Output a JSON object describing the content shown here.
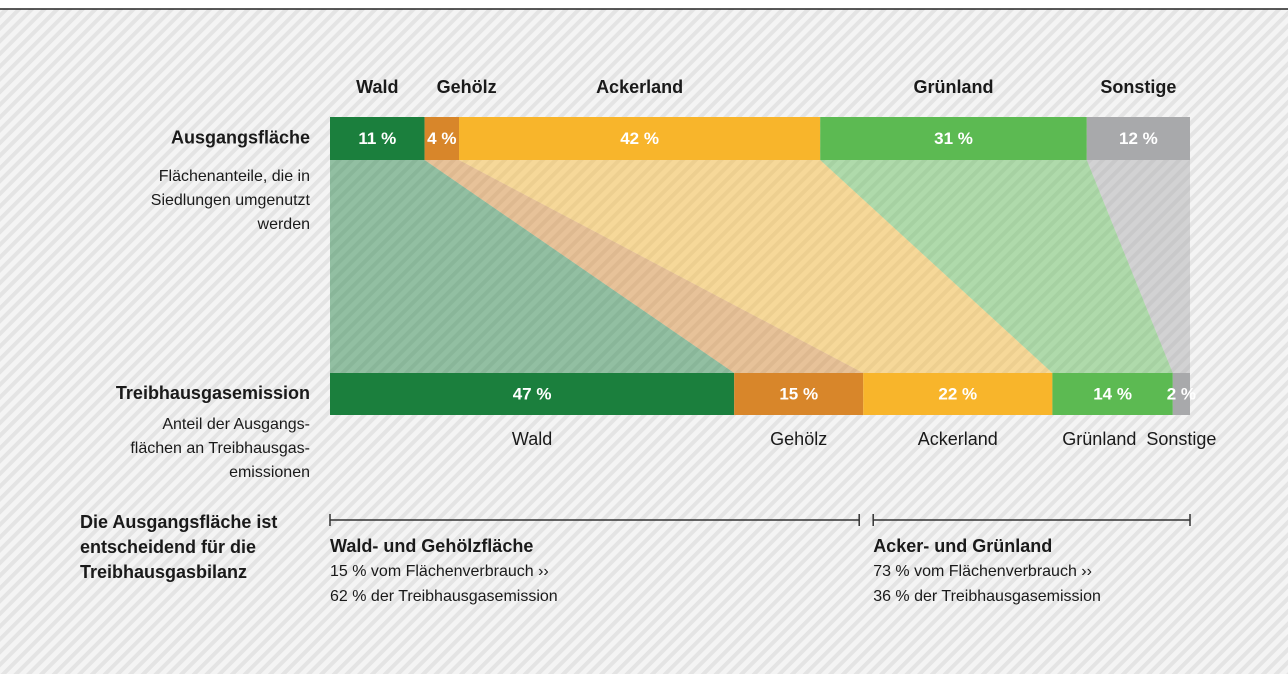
{
  "chart_data": {
    "type": "stacked_bar_flow",
    "categories": [
      "Wald",
      "Gehölz",
      "Ackerland",
      "Grünland",
      "Sonstige"
    ],
    "colors": [
      "#1b7f3d",
      "#d8862a",
      "#f8b52b",
      "#5cba52",
      "#a8a9ab"
    ],
    "xlim": [
      0,
      100
    ],
    "rows": [
      {
        "name": "Ausgangsfläche",
        "description": [
          "Flächenanteile, die in",
          "Siedlungen umgenutzt",
          "werden"
        ],
        "values": [
          11,
          4,
          42,
          31,
          12
        ],
        "value_labels": [
          "11 %",
          "4 %",
          "42 %",
          "31 %",
          "12 %"
        ]
      },
      {
        "name": "Treibhausgasemission",
        "description": [
          "Anteil der Ausgangs-",
          "flächen an Treibhausgas-",
          "emissionen"
        ],
        "values": [
          47,
          15,
          22,
          14,
          2
        ],
        "value_labels": [
          "47 %",
          "15 %",
          "22 %",
          "14 %",
          "2 %"
        ]
      }
    ],
    "summary": {
      "title": [
        "Die Ausgangsfläche ist",
        "entscheidend für die",
        "Treibhausgasbilanz"
      ],
      "groups": [
        {
          "title": "Wald- und Gehölzfläche",
          "lines": [
            "15 % vom Flächenverbrauch ››",
            "62 % der Treibhausgasemission"
          ]
        },
        {
          "title": "Acker- und Grünland",
          "lines": [
            "73 % vom Flächenverbrauch ››",
            "36 % der Treibhausgasemission"
          ]
        }
      ]
    }
  }
}
